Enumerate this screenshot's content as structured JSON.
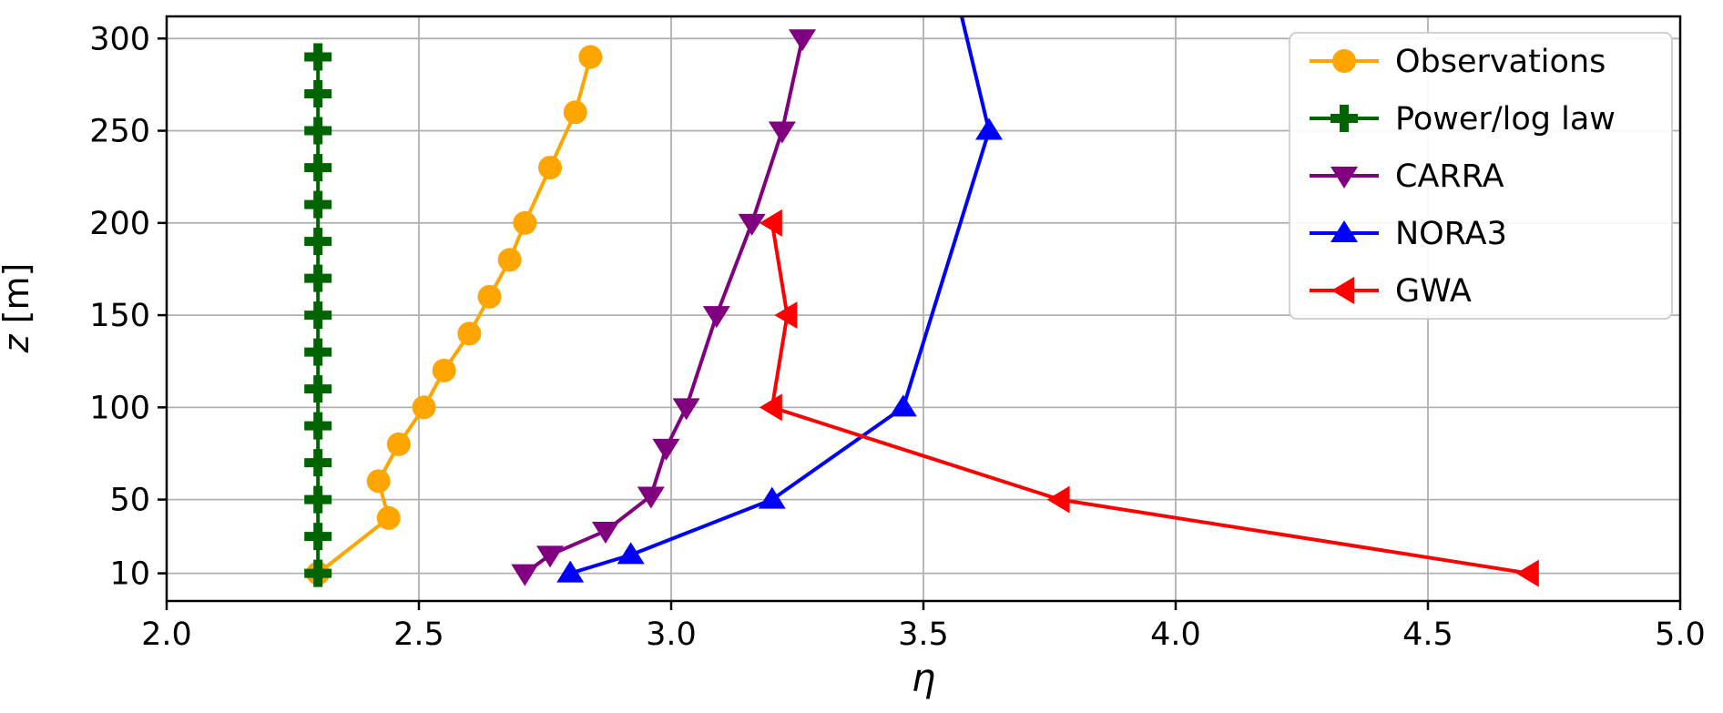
{
  "figure": {
    "background": "#ffffff"
  },
  "chart_data": {
    "type": "line",
    "title": "",
    "xlabel": "η",
    "ylabel_var": "z",
    "ylabel_unit": " [m]",
    "xlim": [
      2.0,
      5.0
    ],
    "ylim": [
      -5,
      312
    ],
    "xticks": [
      2.0,
      2.5,
      3.0,
      3.5,
      4.0,
      4.5,
      5.0
    ],
    "yticks": [
      10,
      50,
      100,
      150,
      200,
      250,
      300
    ],
    "grid": true,
    "grid_color": "#b0b0b0",
    "legend_position": "upper right",
    "series": [
      {
        "name": "Observations",
        "color": "#FFA500",
        "marker": "circle",
        "points": [
          [
            2.3,
            10
          ],
          [
            2.44,
            40
          ],
          [
            2.42,
            60
          ],
          [
            2.46,
            80
          ],
          [
            2.51,
            100
          ],
          [
            2.55,
            120
          ],
          [
            2.6,
            140
          ],
          [
            2.64,
            160
          ],
          [
            2.68,
            180
          ],
          [
            2.71,
            200
          ],
          [
            2.76,
            230
          ],
          [
            2.81,
            260
          ],
          [
            2.84,
            290
          ]
        ]
      },
      {
        "name": "Power/log law",
        "color": "#006400",
        "marker": "plus",
        "points": [
          [
            2.3,
            10
          ],
          [
            2.3,
            30
          ],
          [
            2.3,
            50
          ],
          [
            2.3,
            70
          ],
          [
            2.3,
            90
          ],
          [
            2.3,
            110
          ],
          [
            2.3,
            130
          ],
          [
            2.3,
            150
          ],
          [
            2.3,
            170
          ],
          [
            2.3,
            190
          ],
          [
            2.3,
            210
          ],
          [
            2.3,
            230
          ],
          [
            2.3,
            250
          ],
          [
            2.3,
            270
          ],
          [
            2.3,
            290
          ]
        ]
      },
      {
        "name": "CARRA",
        "color": "#800080",
        "marker": "triangle-down",
        "points": [
          [
            2.71,
            10
          ],
          [
            2.76,
            20
          ],
          [
            2.87,
            33
          ],
          [
            2.96,
            52
          ],
          [
            2.99,
            78
          ],
          [
            3.03,
            100
          ],
          [
            3.09,
            150
          ],
          [
            3.16,
            200
          ],
          [
            3.22,
            250
          ],
          [
            3.26,
            300
          ]
        ]
      },
      {
        "name": "NORA3",
        "color": "#0000FF",
        "marker": "triangle-up",
        "points": [
          [
            2.8,
            10
          ],
          [
            2.92,
            20
          ],
          [
            3.2,
            50
          ],
          [
            3.46,
            100
          ],
          [
            3.63,
            250
          ],
          [
            3.56,
            330
          ]
        ]
      },
      {
        "name": "GWA",
        "color": "#FF0000",
        "marker": "triangle-left",
        "points": [
          [
            4.7,
            10
          ],
          [
            3.77,
            50
          ],
          [
            3.2,
            100
          ],
          [
            3.23,
            150
          ],
          [
            3.2,
            200
          ]
        ]
      }
    ]
  }
}
